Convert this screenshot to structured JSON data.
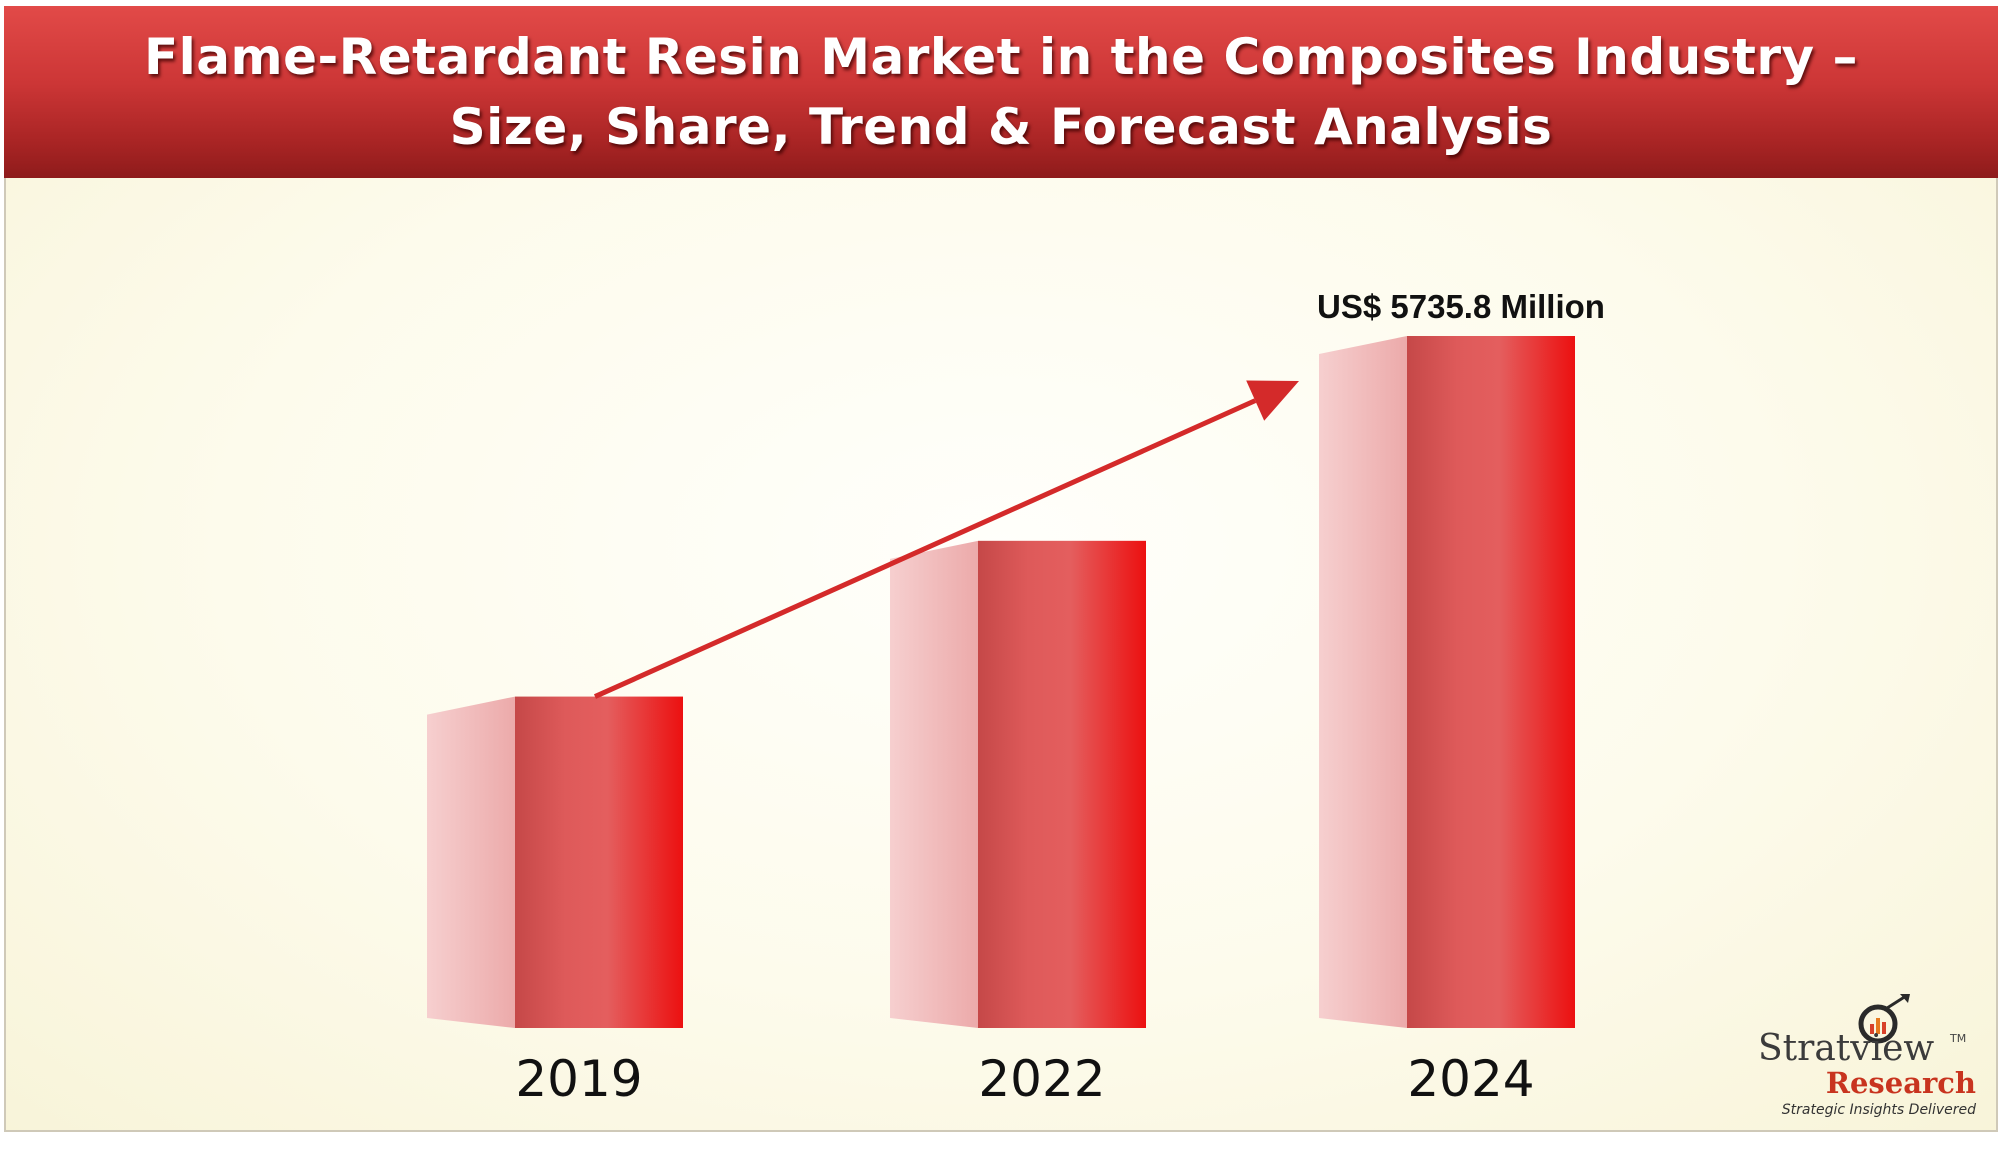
{
  "header": {
    "title_line1": "Flame-Retardant Resin Market in the Composites Industry –",
    "title_line2": "Size, Share, Trend & Forecast Analysis"
  },
  "chart_data": {
    "type": "bar",
    "categories": [
      "2019",
      "2022",
      "2024"
    ],
    "values": [
      1000,
      1470,
      2088
    ],
    "value_labels": [
      "",
      "",
      "US$ 5735.8 Million"
    ],
    "grid": false,
    "colors": {
      "bar_front": "#e8393b",
      "bar_side": "#f2bcbc",
      "arrow": "#d42a2a"
    }
  },
  "brand": {
    "name": "Stratview",
    "trademark": "TM",
    "sub": "Research",
    "tagline": "Strategic Insights Delivered"
  }
}
